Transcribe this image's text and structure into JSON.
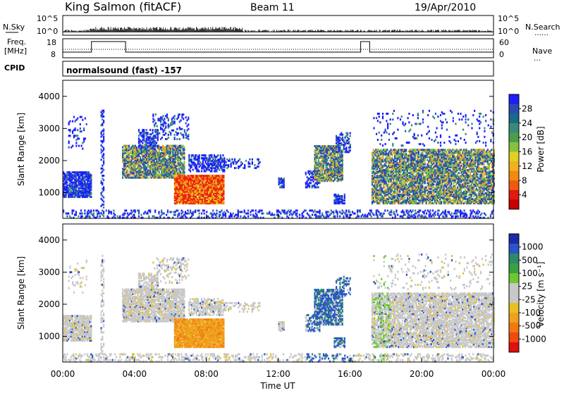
{
  "header": {
    "station": "King Salmon (fitACF)",
    "beam": "Beam 11",
    "date": "19/Apr/2010"
  },
  "strip": {
    "nsky_label": "N.Sky",
    "nsearch_label": "N.Search",
    "nsearch_legend": "……",
    "freq_label_line1": "Freq.",
    "freq_label_line2": "[MHz]",
    "nave_label": "Nave",
    "nave_legend": "…",
    "cpid_label": "CPID",
    "cpid_text": "normalsound (fast) -157",
    "nsky_ticks": [
      "10^5",
      "10^0"
    ],
    "nsky_right_ticks": [
      "10^5",
      "10^0"
    ],
    "freq_ticks": [
      "18",
      "8"
    ],
    "nave_ticks": [
      "60",
      "0"
    ]
  },
  "colorbars": {
    "power": {
      "label": "Power [dB]",
      "ticks": [
        "28",
        "24",
        "20",
        "16",
        "12",
        "8",
        "4"
      ],
      "colors": [
        "#1d1dff",
        "#2a4bb0",
        "#1a6a8a",
        "#3a8a7a",
        "#4aa04a",
        "#88c040",
        "#e0d020",
        "#f0b020",
        "#f08a10",
        "#f05a10",
        "#e01a10",
        "#c80000"
      ]
    },
    "velocity": {
      "label": "Velocity [m s⁻¹]",
      "ticks": [
        "1000",
        "500",
        "100",
        "25",
        "-25",
        "-100",
        "-500",
        "-1000"
      ],
      "colors": [
        "#1d2aa8",
        "#2a55c8",
        "#2a8a6a",
        "#3aa040",
        "#6cc830",
        "#c8c8c8",
        "#c8c8c8",
        "#e8c020",
        "#f0a020",
        "#f07a10",
        "#f04a10",
        "#e01010"
      ]
    }
  },
  "chart_data": [
    {
      "type": "heatmap",
      "title": "Power",
      "ylabel": "Slant Range [km]",
      "yticks": [
        "1000",
        "2000",
        "3000",
        "4000"
      ],
      "xticks": [
        "00:00",
        "04:00",
        "08:00",
        "12:00",
        "16:00",
        "20:00",
        "00:00"
      ],
      "xlim": [
        "00:00",
        "24:00"
      ],
      "ylim": [
        200,
        4500
      ],
      "xlabel": "Time UT"
    },
    {
      "type": "heatmap",
      "title": "Velocity",
      "ylabel": "Slant Range [km]",
      "yticks": [
        "1000",
        "2000",
        "3000",
        "4000"
      ],
      "xticks": [
        "00:00",
        "04:00",
        "08:00",
        "12:00",
        "16:00",
        "20:00",
        "00:00"
      ],
      "xlim": [
        "00:00",
        "24:00"
      ],
      "ylim": [
        200,
        4500
      ]
    }
  ]
}
